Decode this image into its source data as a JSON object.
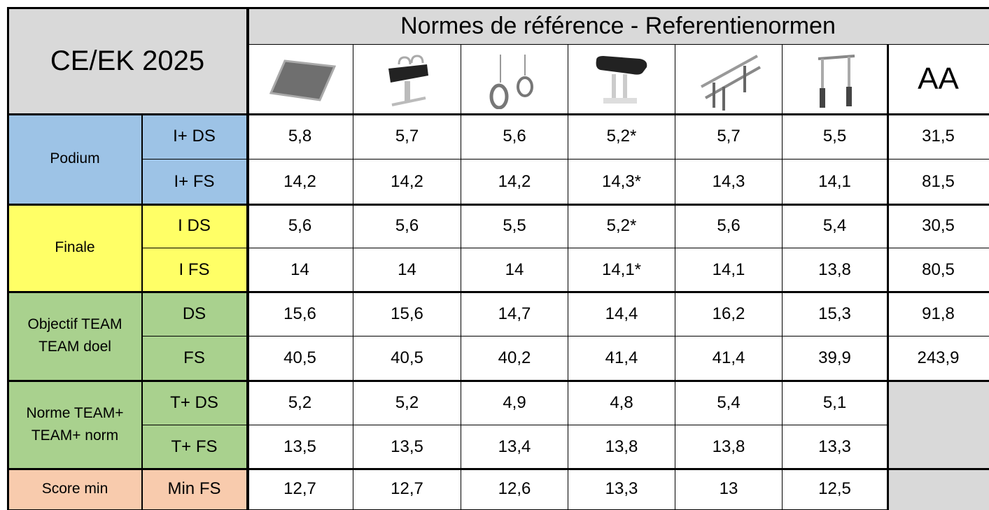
{
  "header": {
    "title": "CE/EK 2025",
    "subtitle": "Normes de référence - Referentienormen",
    "aa": "AA"
  },
  "groups": [
    {
      "lines": [
        "Podium"
      ],
      "rows": [
        {
          "label": "I+ DS",
          "values": [
            "5,8",
            "5,7",
            "5,6",
            "5,2*",
            "5,7",
            "5,5",
            "31,5"
          ]
        },
        {
          "label": "I+ FS",
          "values": [
            "14,2",
            "14,2",
            "14,2",
            "14,3*",
            "14,3",
            "14,1",
            "81,5"
          ]
        }
      ]
    },
    {
      "lines": [
        "Finale"
      ],
      "rows": [
        {
          "label": "I DS",
          "values": [
            "5,6",
            "5,6",
            "5,5",
            "5,2*",
            "5,6",
            "5,4",
            "30,5"
          ]
        },
        {
          "label": "I FS",
          "values": [
            "14",
            "14",
            "14",
            "14,1*",
            "14,1",
            "13,8",
            "80,5"
          ]
        }
      ]
    },
    {
      "lines": [
        "Objectif TEAM",
        "TEAM doel"
      ],
      "rows": [
        {
          "label": "DS",
          "values": [
            "15,6",
            "15,6",
            "14,7",
            "14,4",
            "16,2",
            "15,3",
            "91,8"
          ]
        },
        {
          "label": "FS",
          "values": [
            "40,5",
            "40,5",
            "40,2",
            "41,4",
            "41,4",
            "39,9",
            "243,9"
          ]
        }
      ]
    },
    {
      "lines": [
        "Norme TEAM+",
        "TEAM+ norm"
      ],
      "rows": [
        {
          "label": "T+ DS",
          "values": [
            "5,2",
            "5,2",
            "4,9",
            "4,8",
            "5,4",
            "5,1"
          ]
        },
        {
          "label": "T+ FS",
          "values": [
            "13,5",
            "13,5",
            "13,4",
            "13,8",
            "13,8",
            "13,3"
          ]
        }
      ]
    },
    {
      "lines": [
        "Score min"
      ],
      "rows": [
        {
          "label": "Min FS",
          "values": [
            "12,7",
            "12,7",
            "12,6",
            "13,3",
            "13",
            "12,5"
          ]
        }
      ]
    }
  ]
}
